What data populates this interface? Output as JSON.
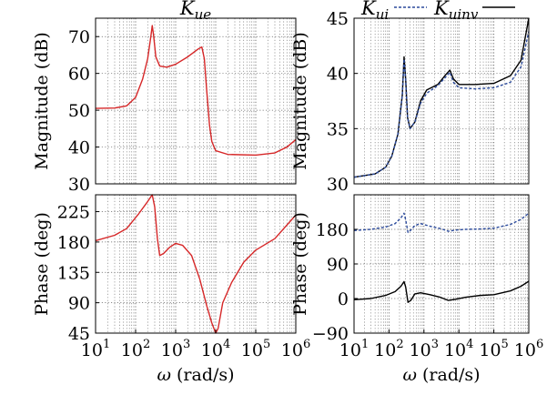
{
  "chart_data": [
    {
      "type": "line",
      "title": "K",
      "title_sub": "ue",
      "xlabel_sym": "ω",
      "xlabel_unit": " (rad/s)",
      "ylabel": "Magnitude (dB)",
      "xscale": "log",
      "xlim": [
        10,
        1000000
      ],
      "ylim": [
        30,
        75
      ],
      "yticks": [
        30,
        40,
        50,
        60,
        70
      ],
      "grid": true,
      "series": [
        {
          "color": "#d62728",
          "dash": "solid",
          "points": [
            [
              10,
              50.5
            ],
            [
              30,
              50.6
            ],
            [
              60,
              51.2
            ],
            [
              100,
              53.5
            ],
            [
              150,
              58.5
            ],
            [
              200,
              64
            ],
            [
              240,
              70
            ],
            [
              260,
              73
            ],
            [
              280,
              70.5
            ],
            [
              320,
              64.5
            ],
            [
              400,
              62
            ],
            [
              600,
              61.7
            ],
            [
              1000,
              62.5
            ],
            [
              2000,
              64.5
            ],
            [
              3500,
              66.5
            ],
            [
              4500,
              67.2
            ],
            [
              5200,
              64
            ],
            [
              6000,
              55
            ],
            [
              7000,
              46
            ],
            [
              8000,
              41.5
            ],
            [
              10000,
              39
            ],
            [
              20000,
              38
            ],
            [
              100000,
              37.8
            ],
            [
              300000,
              38.4
            ],
            [
              600000,
              40
            ],
            [
              1000000,
              42
            ]
          ]
        }
      ]
    },
    {
      "type": "line",
      "xlabel_sym": "ω",
      "xlabel_unit": " (rad/s)",
      "ylabel": "Phase (deg)",
      "xscale": "log",
      "xlim": [
        10,
        1000000
      ],
      "ylim": [
        45,
        250
      ],
      "yticks": [
        45,
        90,
        135,
        180,
        225
      ],
      "xticks": [
        10,
        100,
        1000,
        10000,
        100000,
        1000000
      ],
      "xtick_labels": [
        {
          "b": "10",
          "e": "1"
        },
        {
          "b": "10",
          "e": "2"
        },
        {
          "b": "10",
          "e": "3"
        },
        {
          "b": "10",
          "e": "4"
        },
        {
          "b": "10",
          "e": "5"
        },
        {
          "b": "10",
          "e": "6"
        }
      ],
      "grid": true,
      "series": [
        {
          "color": "#d62728",
          "dash": "solid",
          "points": [
            [
              10,
              182
            ],
            [
              30,
              190
            ],
            [
              60,
              200
            ],
            [
              120,
              222
            ],
            [
              200,
              240
            ],
            [
              260,
              250
            ],
            [
              300,
              232
            ],
            [
              350,
              185
            ],
            [
              400,
              160
            ],
            [
              500,
              163
            ],
            [
              700,
              172
            ],
            [
              1000,
              178
            ],
            [
              1500,
              175
            ],
            [
              2500,
              160
            ],
            [
              4000,
              125
            ],
            [
              6000,
              85
            ],
            [
              8000,
              60
            ],
            [
              10000,
              45
            ],
            [
              11500,
              52
            ],
            [
              15000,
              90
            ],
            [
              25000,
              120
            ],
            [
              50000,
              150
            ],
            [
              100000,
              168
            ],
            [
              300000,
              185
            ],
            [
              1000000,
              220
            ]
          ]
        }
      ]
    },
    {
      "type": "line",
      "legend": [
        {
          "label": "K",
          "sub": "ui",
          "dash": "dotted",
          "color": "#2b4a9c"
        },
        {
          "label": "K",
          "sub": "uinv",
          "dash": "solid",
          "color": "#000000"
        }
      ],
      "xlabel_sym": "ω",
      "xlabel_unit": " (rad/s)",
      "ylabel": "Magnitude (dB)",
      "xscale": "log",
      "xlim": [
        10,
        1000000
      ],
      "ylim": [
        30,
        45
      ],
      "yticks": [
        30,
        35,
        40,
        45
      ],
      "grid": true,
      "series": [
        {
          "color": "#000000",
          "dash": "solid",
          "points": [
            [
              10,
              30.6
            ],
            [
              40,
              30.9
            ],
            [
              80,
              31.5
            ],
            [
              120,
              32.5
            ],
            [
              180,
              34.5
            ],
            [
              240,
              38
            ],
            [
              270,
              41.5
            ],
            [
              300,
              39.5
            ],
            [
              340,
              36
            ],
            [
              400,
              35
            ],
            [
              550,
              35.6
            ],
            [
              800,
              37.5
            ],
            [
              1200,
              38.5
            ],
            [
              2500,
              39
            ],
            [
              4000,
              39.8
            ],
            [
              5500,
              40.3
            ],
            [
              7000,
              39.5
            ],
            [
              10000,
              39
            ],
            [
              30000,
              39
            ],
            [
              100000,
              39.1
            ],
            [
              300000,
              39.8
            ],
            [
              600000,
              41.2
            ],
            [
              1000000,
              45
            ]
          ]
        },
        {
          "color": "#2b4a9c",
          "dash": "dotted",
          "points": [
            [
              10,
              30.6
            ],
            [
              40,
              30.9
            ],
            [
              80,
              31.5
            ],
            [
              120,
              32.5
            ],
            [
              180,
              34.5
            ],
            [
              240,
              38
            ],
            [
              270,
              41.3
            ],
            [
              300,
              39.4
            ],
            [
              340,
              36
            ],
            [
              400,
              35
            ],
            [
              550,
              35.6
            ],
            [
              800,
              37.3
            ],
            [
              1200,
              38.2
            ],
            [
              2500,
              38.9
            ],
            [
              4000,
              39.6
            ],
            [
              5500,
              40.1
            ],
            [
              7000,
              39.2
            ],
            [
              10000,
              38.7
            ],
            [
              30000,
              38.6
            ],
            [
              100000,
              38.7
            ],
            [
              300000,
              39.2
            ],
            [
              600000,
              40.6
            ],
            [
              1000000,
              43.8
            ]
          ]
        }
      ]
    },
    {
      "type": "line",
      "xlabel_sym": "ω",
      "xlabel_unit": " (rad/s)",
      "ylabel": "Phase (deg)",
      "xscale": "log",
      "xlim": [
        10,
        1000000
      ],
      "ylim": [
        -90,
        270
      ],
      "yticks": [
        -90,
        0,
        90,
        180
      ],
      "xticks": [
        10,
        100,
        1000,
        10000,
        100000,
        1000000
      ],
      "xtick_labels": [
        {
          "b": "10",
          "e": "1"
        },
        {
          "b": "10",
          "e": "2"
        },
        {
          "b": "10",
          "e": "3"
        },
        {
          "b": "10",
          "e": "4"
        },
        {
          "b": "10",
          "e": "5"
        },
        {
          "b": "10",
          "e": "6"
        }
      ],
      "grid": true,
      "series": [
        {
          "color": "#000000",
          "dash": "solid",
          "points": [
            [
              10,
              -3
            ],
            [
              30,
              0
            ],
            [
              80,
              8
            ],
            [
              150,
              18
            ],
            [
              220,
              32
            ],
            [
              270,
              44
            ],
            [
              300,
              30
            ],
            [
              350,
              -10
            ],
            [
              420,
              -5
            ],
            [
              550,
              12
            ],
            [
              800,
              15
            ],
            [
              1500,
              10
            ],
            [
              3000,
              3
            ],
            [
              5000,
              -5
            ],
            [
              8000,
              -2
            ],
            [
              15000,
              3
            ],
            [
              40000,
              8
            ],
            [
              100000,
              10
            ],
            [
              300000,
              20
            ],
            [
              600000,
              32
            ],
            [
              1000000,
              45
            ]
          ]
        },
        {
          "color": "#2b4a9c",
          "dash": "dotted",
          "points": [
            [
              10,
              177
            ],
            [
              30,
              180
            ],
            [
              80,
              186
            ],
            [
              150,
              195
            ],
            [
              220,
              210
            ],
            [
              270,
              222
            ],
            [
              300,
              205
            ],
            [
              350,
              172
            ],
            [
              420,
              178
            ],
            [
              550,
              190
            ],
            [
              800,
              195
            ],
            [
              1500,
              188
            ],
            [
              3000,
              182
            ],
            [
              5000,
              175
            ],
            [
              8000,
              178
            ],
            [
              15000,
              180
            ],
            [
              40000,
              181
            ],
            [
              100000,
              183
            ],
            [
              300000,
              193
            ],
            [
              600000,
              206
            ],
            [
              1000000,
              222
            ]
          ]
        }
      ]
    }
  ]
}
